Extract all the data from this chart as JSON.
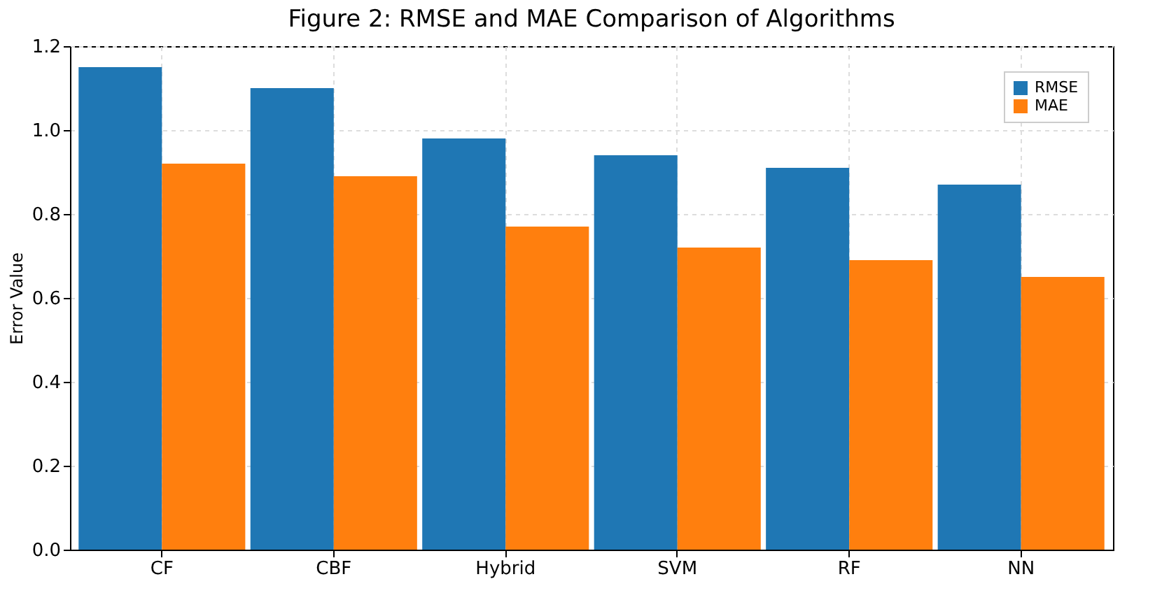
{
  "chart_data": {
    "type": "bar",
    "title": "Figure 2: RMSE and MAE Comparison of Algorithms",
    "ylabel": "Error Value",
    "categories": [
      "CF",
      "CBF",
      "Hybrid",
      "SVM",
      "RF",
      "NN"
    ],
    "series": [
      {
        "name": "RMSE",
        "color": "#1f77b4",
        "values": [
          1.15,
          1.1,
          0.98,
          0.94,
          0.91,
          0.87
        ]
      },
      {
        "name": "MAE",
        "color": "#ff7f0e",
        "values": [
          0.92,
          0.89,
          0.77,
          0.72,
          0.69,
          0.65
        ]
      }
    ],
    "ylim": [
      0,
      1.2
    ],
    "yticks": [
      {
        "value": 0,
        "label": "0.0"
      },
      0.2,
      0.4,
      0.6,
      0.8,
      {
        "value": 1,
        "label": "1.0"
      },
      1.2
    ],
    "grid": true,
    "legend": "top right"
  }
}
